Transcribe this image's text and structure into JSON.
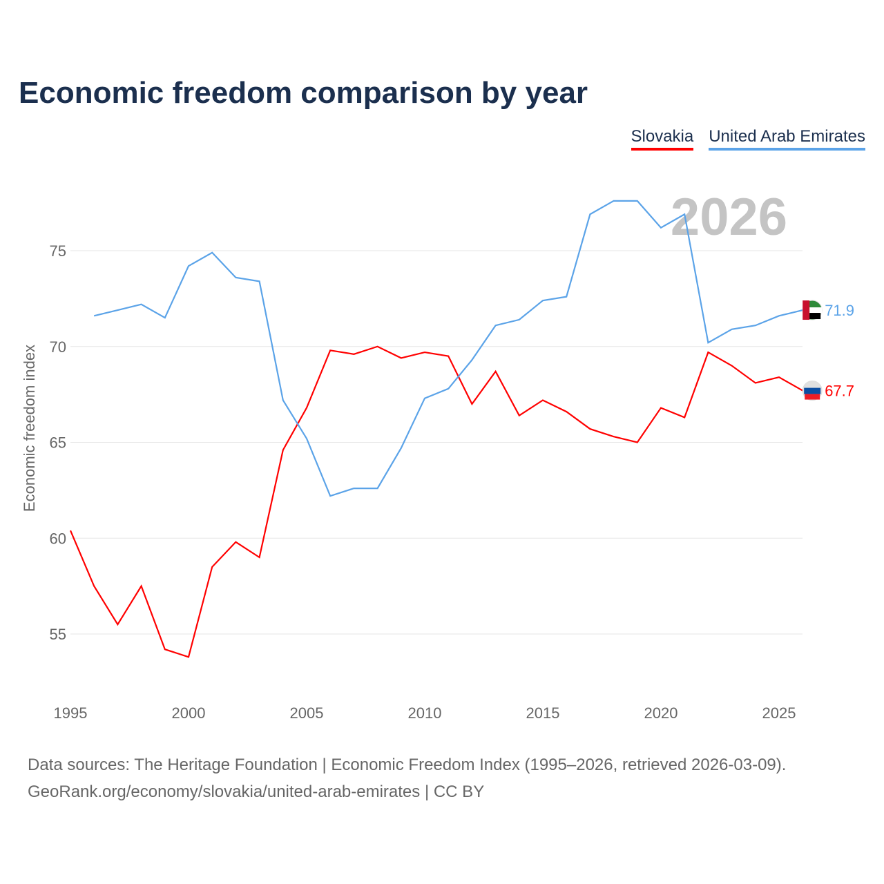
{
  "title": "Economic freedom comparison by year",
  "watermark_year": "2026",
  "sources": [
    "Data sources: The Heritage Foundation | Economic Freedom Index (1995–2026, retrieved 2026-03-09).",
    "GeoRank.org/economy/slovakia/united-arab-emirates | CC BY"
  ],
  "chart_data": {
    "type": "line",
    "title": "Economic freedom comparison by year",
    "xlabel": "",
    "ylabel": "Economic freedom index",
    "xlim": [
      1995,
      2026
    ],
    "ylim": [
      52,
      79
    ],
    "xticks": [
      1995,
      2000,
      2005,
      2010,
      2015,
      2020,
      2025
    ],
    "yticks": [
      55,
      60,
      65,
      70,
      75
    ],
    "grid": true,
    "legend": "top-right",
    "series": [
      {
        "name": "Slovakia",
        "color": "#ff0000",
        "end_label": "67.7",
        "x": [
          1995,
          1996,
          1997,
          1998,
          1999,
          2000,
          2001,
          2002,
          2003,
          2004,
          2005,
          2006,
          2007,
          2008,
          2009,
          2010,
          2011,
          2012,
          2013,
          2014,
          2015,
          2016,
          2017,
          2018,
          2019,
          2020,
          2021,
          2022,
          2023,
          2024,
          2025,
          2026
        ],
        "values": [
          60.4,
          57.5,
          55.5,
          57.5,
          54.2,
          53.8,
          58.5,
          59.8,
          59.0,
          64.6,
          66.8,
          69.8,
          69.6,
          70.0,
          69.4,
          69.7,
          69.5,
          67.0,
          68.7,
          66.4,
          67.2,
          66.6,
          65.7,
          65.3,
          65.0,
          66.8,
          66.3,
          69.7,
          69.0,
          68.1,
          68.4,
          67.7
        ]
      },
      {
        "name": "United Arab Emirates",
        "color": "#5ba3e8",
        "end_label": "71.9",
        "x": [
          1996,
          1997,
          1998,
          1999,
          2000,
          2001,
          2002,
          2003,
          2004,
          2005,
          2006,
          2007,
          2008,
          2009,
          2010,
          2011,
          2012,
          2013,
          2014,
          2015,
          2016,
          2017,
          2018,
          2019,
          2020,
          2021,
          2022,
          2023,
          2024,
          2025,
          2026
        ],
        "values": [
          71.6,
          71.9,
          72.2,
          71.5,
          74.2,
          74.9,
          73.6,
          73.4,
          67.2,
          65.2,
          62.2,
          62.6,
          62.6,
          64.7,
          67.3,
          67.8,
          69.3,
          71.1,
          71.4,
          72.4,
          72.6,
          76.9,
          77.6,
          77.6,
          76.2,
          76.9,
          70.2,
          70.9,
          71.1,
          71.6,
          71.9
        ]
      }
    ]
  }
}
